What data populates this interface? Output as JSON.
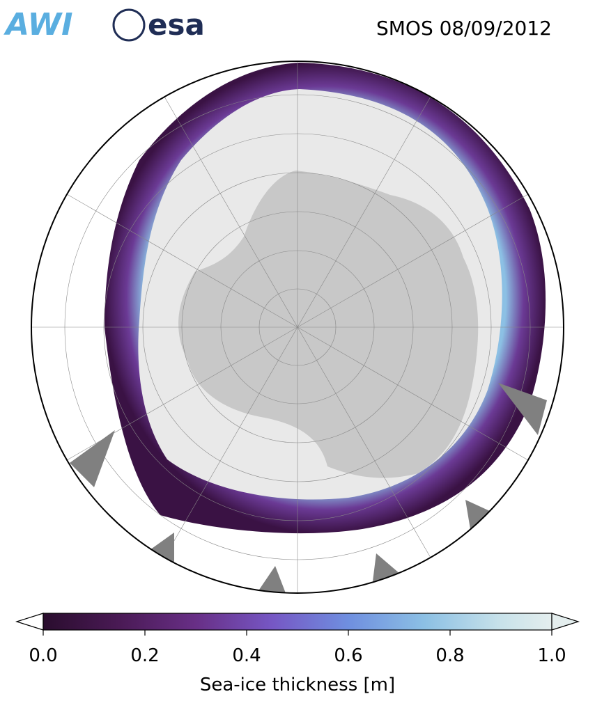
{
  "header": {
    "logos": [
      "AWI",
      "esa"
    ],
    "title": "SMOS 08/09/2012"
  },
  "colorbar": {
    "label": "Sea-ice thickness [m]",
    "lim": [
      0,
      1
    ],
    "ticks": [
      {
        "value": 0,
        "label": "0.0"
      },
      0.2,
      0.4,
      0.6,
      0.8,
      {
        "value": 1,
        "label": "1.0"
      }
    ]
  }
}
